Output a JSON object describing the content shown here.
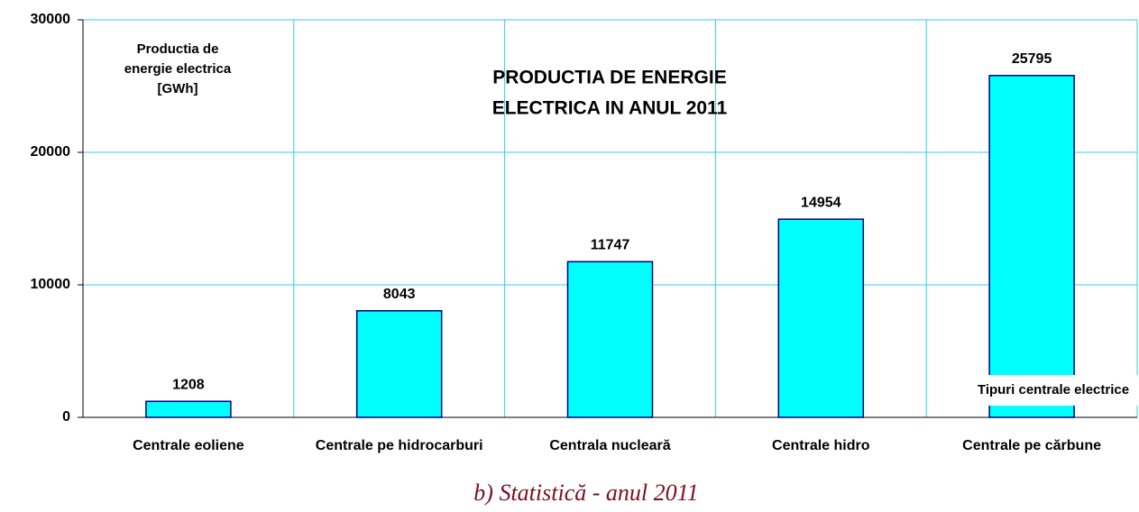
{
  "chart_data": {
    "type": "bar",
    "title": [
      "PRODUCTIA DE ENERGIE",
      "ELECTRICA IN ANUL 2011"
    ],
    "y_label": [
      "Productia de",
      "energie electrica",
      "[GWh]"
    ],
    "x_label": "Tipuri centrale electrice",
    "caption": "b) Statistică - anul 2011",
    "categories": [
      "Centrale eoliene",
      "Centrale pe hidrocarburi",
      "Centrala nucleară",
      "Centrale hidro",
      "Centrale pe cărbune"
    ],
    "values": [
      1208,
      8043,
      11747,
      14954,
      25795
    ],
    "color": "#00ffff",
    "ylim": [
      0,
      30000
    ],
    "yticks": [
      0,
      10000,
      20000,
      30000
    ],
    "grid": true
  }
}
